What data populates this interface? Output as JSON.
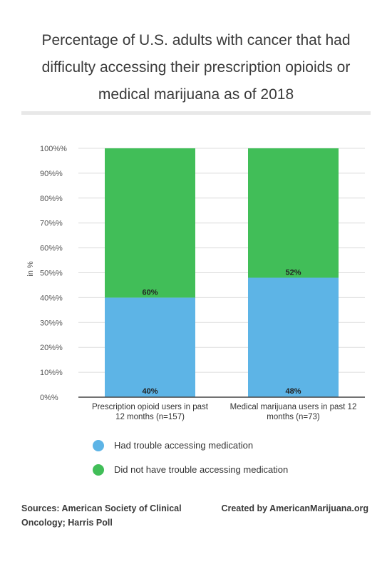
{
  "title": "Percentage of U.S. adults with cancer that had difficulty accessing their prescription opioids or medical marijuana as of 2018",
  "chart_data": {
    "type": "bar",
    "stacked": true,
    "categories": [
      [
        "Prescription opioid users in past",
        "12 months (n=157)"
      ],
      [
        "Medical marijuana users in past 12",
        "months (n=73)"
      ]
    ],
    "series": [
      {
        "name": "Had trouble accessing medication",
        "color": "#5db4e6",
        "values": [
          40,
          48
        ],
        "labels": [
          "40%",
          "48%"
        ]
      },
      {
        "name": "Did not have trouble accessing medication",
        "color": "#41be58",
        "values": [
          60,
          52
        ],
        "labels": [
          "60%",
          "52%"
        ]
      }
    ],
    "ylabel": "in %",
    "ylim": [
      0,
      100
    ],
    "yticks": [
      "0%%",
      "10%%",
      "20%%",
      "30%%",
      "40%%",
      "50%%",
      "60%%",
      "70%%",
      "80%%",
      "90%%",
      "100%%"
    ],
    "grid": true,
    "legend_position": "bottom"
  },
  "footer": {
    "sources": "Sources: American Society of Clinical Oncology; Harris Poll",
    "credit": "Created by AmericanMarijuana.org"
  }
}
